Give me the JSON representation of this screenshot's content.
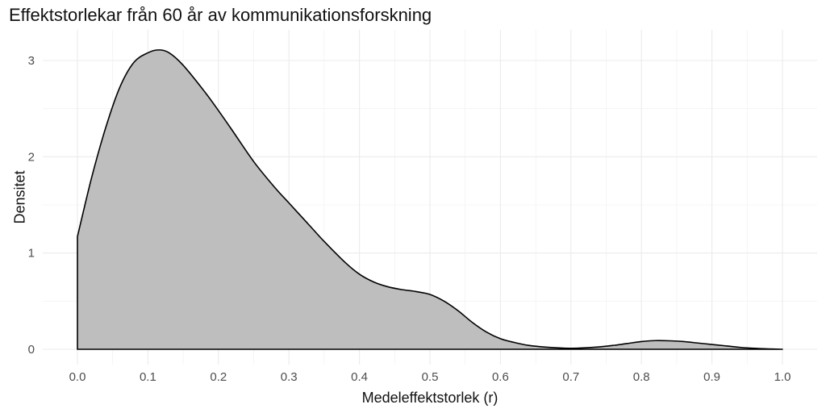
{
  "chart_data": {
    "type": "area",
    "title": "Effektstorlekar från 60 år av kommunikationsforskning",
    "xlabel": "Medeleffektstorlek (r)",
    "ylabel": "Densitet",
    "xlim": [
      -0.05,
      1.05
    ],
    "ylim": [
      0,
      3.2
    ],
    "x_ticks": [
      "0.0",
      "0.1",
      "0.2",
      "0.3",
      "0.4",
      "0.5",
      "0.6",
      "0.7",
      "0.8",
      "0.9",
      "1.0"
    ],
    "y_ticks": [
      "0",
      "1",
      "2",
      "3"
    ],
    "grid": true,
    "fill_color": "#bebebe",
    "line_color": "#000000",
    "x": [
      0.0,
      0.02,
      0.04,
      0.06,
      0.08,
      0.1,
      0.115,
      0.13,
      0.15,
      0.18,
      0.2,
      0.22,
      0.25,
      0.28,
      0.3,
      0.33,
      0.35,
      0.38,
      0.4,
      0.42,
      0.44,
      0.46,
      0.48,
      0.5,
      0.52,
      0.54,
      0.56,
      0.58,
      0.6,
      0.62,
      0.64,
      0.66,
      0.68,
      0.7,
      0.72,
      0.74,
      0.76,
      0.78,
      0.8,
      0.82,
      0.84,
      0.86,
      0.88,
      0.9,
      0.92,
      0.94,
      0.96,
      0.98,
      1.0
    ],
    "y": [
      1.17,
      1.78,
      2.3,
      2.72,
      2.98,
      3.08,
      3.11,
      3.08,
      2.95,
      2.68,
      2.48,
      2.27,
      1.95,
      1.68,
      1.52,
      1.28,
      1.12,
      0.9,
      0.78,
      0.7,
      0.65,
      0.62,
      0.6,
      0.57,
      0.5,
      0.4,
      0.28,
      0.18,
      0.11,
      0.07,
      0.04,
      0.025,
      0.015,
      0.01,
      0.015,
      0.025,
      0.04,
      0.06,
      0.08,
      0.09,
      0.088,
      0.08,
      0.065,
      0.05,
      0.035,
      0.02,
      0.01,
      0.004,
      0.0
    ]
  }
}
